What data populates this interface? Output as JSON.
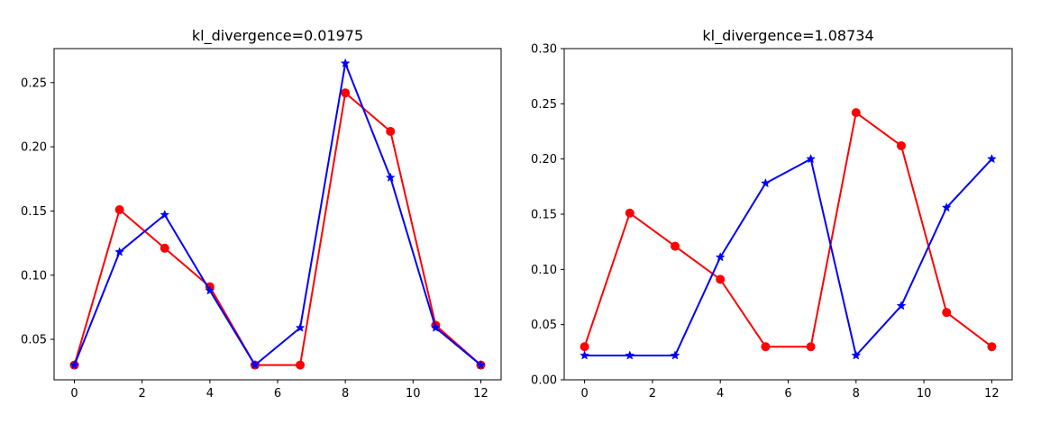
{
  "colors": {
    "series_a": "#ff0000",
    "series_b": "#0000ff",
    "axes": "#000000",
    "background": "#ffffff"
  },
  "markers": {
    "series_a": "circle",
    "series_b": "star"
  },
  "chart_data": [
    {
      "type": "line",
      "title": "kl_divergence=0.01975",
      "xlabel": "",
      "ylabel": "",
      "grid": false,
      "xlim": [
        -0.6,
        12.6
      ],
      "ylim": [
        0.0185,
        0.2765
      ],
      "xticks": [
        "0",
        "2",
        "4",
        "6",
        "8",
        "10",
        "12"
      ],
      "yticks": [
        "0.05",
        "0.10",
        "0.15",
        "0.20",
        "0.25"
      ],
      "x": [
        0,
        1.333,
        2.667,
        4,
        5.333,
        6.667,
        8,
        9.333,
        10.667,
        12
      ],
      "series": [
        {
          "color": "#ff0000",
          "marker": "circle",
          "values": [
            0.03,
            0.151,
            0.121,
            0.091,
            0.03,
            0.03,
            0.242,
            0.212,
            0.061,
            0.03
          ]
        },
        {
          "color": "#0000ff",
          "marker": "star",
          "values": [
            0.03,
            0.118,
            0.147,
            0.088,
            0.03,
            0.059,
            0.265,
            0.176,
            0.059,
            0.03
          ]
        }
      ]
    },
    {
      "type": "line",
      "title": "kl_divergence=1.08734",
      "xlabel": "",
      "ylabel": "",
      "grid": false,
      "xlim": [
        -0.6,
        12.6
      ],
      "ylim": [
        0.0,
        0.3
      ],
      "xticks": [
        "0",
        "2",
        "4",
        "6",
        "8",
        "10",
        "12"
      ],
      "yticks": [
        "0.00",
        "0.05",
        "0.10",
        "0.15",
        "0.20",
        "0.25",
        "0.30"
      ],
      "x": [
        0,
        1.333,
        2.667,
        4,
        5.333,
        6.667,
        8,
        9.333,
        10.667,
        12
      ],
      "series": [
        {
          "color": "#ff0000",
          "marker": "circle",
          "values": [
            0.03,
            0.151,
            0.121,
            0.091,
            0.03,
            0.03,
            0.242,
            0.212,
            0.061,
            0.03
          ]
        },
        {
          "color": "#0000ff",
          "marker": "star",
          "values": [
            0.022,
            0.022,
            0.022,
            0.111,
            0.178,
            0.2,
            0.022,
            0.067,
            0.156,
            0.2
          ]
        }
      ]
    }
  ]
}
